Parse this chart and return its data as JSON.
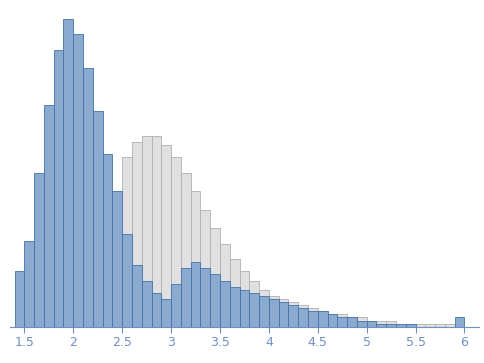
{
  "blue_bin_edges": [
    1.4,
    1.5,
    1.6,
    1.7,
    1.8,
    1.9,
    2.0,
    2.1,
    2.2,
    2.3,
    2.4,
    2.5,
    2.6,
    2.7,
    2.8,
    2.9,
    3.0,
    3.1,
    3.2,
    3.3,
    3.4,
    3.5,
    3.6,
    3.7,
    3.8,
    3.9,
    4.0,
    4.1,
    4.2,
    4.3,
    4.4,
    4.5,
    4.6,
    4.7,
    4.8,
    4.9,
    5.0,
    5.1,
    5.2,
    5.3,
    5.4,
    5.5,
    5.6,
    5.7,
    5.8,
    5.9
  ],
  "blue_heights": [
    18,
    28,
    50,
    72,
    90,
    100,
    95,
    84,
    70,
    56,
    44,
    30,
    20,
    15,
    11,
    9,
    14,
    19,
    21,
    19,
    17,
    15,
    13,
    12,
    11,
    10,
    9,
    8,
    7,
    6,
    5,
    5,
    4,
    3,
    3,
    2,
    2,
    1,
    1,
    1,
    1,
    0,
    0,
    0,
    0,
    3
  ],
  "gray_bin_edges": [
    2.1,
    2.2,
    2.3,
    2.4,
    2.5,
    2.6,
    2.7,
    2.8,
    2.9,
    3.0,
    3.1,
    3.2,
    3.3,
    3.4,
    3.5,
    3.6,
    3.7,
    3.8,
    3.9,
    4.0,
    4.1,
    4.2,
    4.3,
    4.4,
    4.5,
    4.6,
    4.7,
    4.8,
    4.9,
    5.0,
    5.1,
    5.2,
    5.3,
    5.4,
    5.5,
    5.6,
    5.7,
    5.8,
    5.9,
    6.0
  ],
  "gray_heights": [
    5,
    12,
    25,
    42,
    55,
    60,
    62,
    62,
    59,
    55,
    50,
    44,
    38,
    32,
    27,
    22,
    18,
    15,
    12,
    10,
    9,
    8,
    7,
    6,
    5,
    4,
    4,
    3,
    3,
    2,
    2,
    2,
    1,
    1,
    1,
    1,
    1,
    1,
    0,
    0
  ],
  "blue_facecolor": "#8aaad0",
  "blue_edgecolor": "#4472a8",
  "gray_facecolor": "#e0e0e0",
  "gray_edgecolor": "#b0b0b0",
  "xlim": [
    1.35,
    6.15
  ],
  "ylim_max": 1.05,
  "xticks": [
    1.5,
    2.0,
    2.5,
    3.0,
    3.5,
    4.0,
    4.5,
    5.0,
    5.5,
    6.0
  ],
  "xtick_labels": [
    "1.5",
    "2",
    "2.5",
    "3",
    "3.5",
    "4",
    "4.5",
    "5",
    "5.5",
    "6"
  ],
  "tick_color": "#7090c0",
  "tick_fontsize": 9,
  "spine_color": "#7090c0",
  "bin_width": 0.1,
  "linewidth": 0.6
}
